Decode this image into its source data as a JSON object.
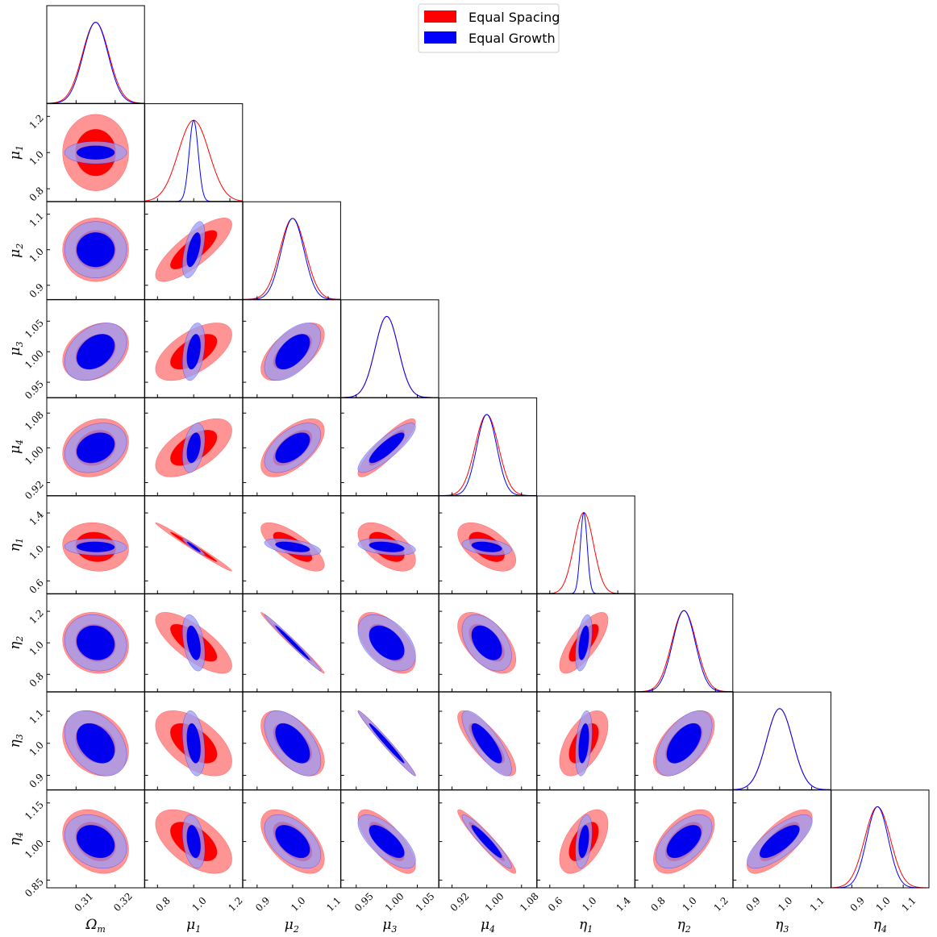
{
  "chart_data": {
    "type": "corner",
    "legend": {
      "placement": "top-center",
      "entries": [
        {
          "label": "Equal Spacing",
          "color": "#ff0000"
        },
        {
          "label": "Equal Growth",
          "color": "#0000ff"
        }
      ]
    },
    "parameters": [
      {
        "name": "Omega_m",
        "label": "Ωm",
        "symbol": "Ω",
        "subscript": "m",
        "mean": 0.315,
        "ticks": [
          "0.31",
          "0.32"
        ],
        "tick_values": [
          0.31,
          0.32
        ],
        "range": [
          0.3025,
          0.3275
        ],
        "sigma_spacing": 0.0034,
        "sigma_growth": 0.0032
      },
      {
        "name": "mu_1",
        "label": "μ1",
        "symbol": "μ",
        "subscript": "1",
        "mean": 1.0,
        "ticks": [
          "0.8",
          "1.0",
          "1.2"
        ],
        "tick_values": [
          0.8,
          1.0,
          1.2
        ],
        "range": [
          0.73,
          1.27
        ],
        "sigma_spacing": 0.085,
        "sigma_growth": 0.025
      },
      {
        "name": "mu_2",
        "label": "μ2",
        "symbol": "μ",
        "subscript": "2",
        "mean": 1.0,
        "ticks": [
          "0.9",
          "1.0",
          "1.1"
        ],
        "tick_values": [
          0.9,
          1.0,
          1.1
        ],
        "range": [
          0.86,
          1.135
        ],
        "sigma_spacing": 0.036,
        "sigma_growth": 0.032
      },
      {
        "name": "mu_3",
        "label": "μ3",
        "symbol": "μ",
        "subscript": "3",
        "mean": 1.0,
        "ticks": [
          "0.95",
          "1.00",
          "1.05"
        ],
        "tick_values": [
          0.95,
          1.0,
          1.05
        ],
        "range": [
          0.925,
          1.085
        ],
        "sigma_spacing": 0.019,
        "sigma_growth": 0.019
      },
      {
        "name": "mu_4",
        "label": "μ4",
        "symbol": "μ",
        "subscript": "4",
        "mean": 1.0,
        "ticks": [
          "0.92",
          "1.00",
          "1.08"
        ],
        "tick_values": [
          0.92,
          1.0,
          1.08
        ],
        "range": [
          0.89,
          1.115
        ],
        "sigma_spacing": 0.027,
        "sigma_growth": 0.023
      },
      {
        "name": "eta_1",
        "label": "η1",
        "symbol": "η",
        "subscript": "1",
        "mean": 1.0,
        "ticks": [
          "0.6",
          "1.0",
          "1.4"
        ],
        "tick_values": [
          0.6,
          1.0,
          1.4
        ],
        "range": [
          0.45,
          1.6
        ],
        "sigma_spacing": 0.115,
        "sigma_growth": 0.04
      },
      {
        "name": "eta_2",
        "label": "η2",
        "symbol": "η",
        "subscript": "2",
        "mean": 1.0,
        "ticks": [
          "0.8",
          "1.0",
          "1.2"
        ],
        "tick_values": [
          0.8,
          1.0,
          1.2
        ],
        "range": [
          0.69,
          1.31
        ],
        "sigma_spacing": 0.078,
        "sigma_growth": 0.072
      },
      {
        "name": "eta_3",
        "label": "η3",
        "symbol": "η",
        "subscript": "3",
        "mean": 1.0,
        "ticks": [
          "0.9",
          "1.0",
          "1.1"
        ],
        "tick_values": [
          0.9,
          1.0,
          1.1
        ],
        "range": [
          0.855,
          1.16
        ],
        "sigma_spacing": 0.041,
        "sigma_growth": 0.041
      },
      {
        "name": "eta_4",
        "label": "η4",
        "symbol": "η",
        "subscript": "4",
        "mean": 1.0,
        "ticks": [
          "0.9",
          "1.0",
          "1.1"
        ],
        "tick_values": [
          0.9,
          1.0,
          1.1
        ],
        "range": [
          0.82,
          1.2
        ],
        "sigma_spacing": 0.05,
        "sigma_growth": 0.042
      }
    ],
    "y_tick_overrides": {
      "eta_4": {
        "ticks": [
          "0.85",
          "1.00",
          "1.15"
        ],
        "tick_values": [
          0.85,
          1.0,
          1.15
        ]
      }
    },
    "correlations": {
      "spacing": [
        [
          1.0,
          0.0,
          0.0,
          0.3,
          0.2,
          -0.1,
          -0.1,
          -0.25,
          -0.25
        ],
        [
          0.0,
          1.0,
          0.8,
          0.6,
          0.6,
          -0.99,
          -0.75,
          -0.55,
          -0.55
        ],
        [
          0.0,
          0.8,
          1.0,
          0.6,
          0.6,
          -0.75,
          -0.99,
          -0.55,
          -0.55
        ],
        [
          0.3,
          0.6,
          0.6,
          1.0,
          0.88,
          -0.55,
          -0.55,
          -0.985,
          -0.75
        ],
        [
          0.2,
          0.6,
          0.6,
          0.88,
          1.0,
          -0.55,
          -0.55,
          -0.8,
          -0.95
        ],
        [
          -0.1,
          -0.99,
          -0.75,
          -0.55,
          -0.55,
          1.0,
          0.75,
          0.55,
          0.55
        ],
        [
          -0.1,
          -0.75,
          -0.99,
          -0.55,
          -0.55,
          0.75,
          1.0,
          0.55,
          0.55
        ],
        [
          -0.25,
          -0.55,
          -0.55,
          -0.985,
          -0.8,
          0.55,
          0.55,
          1.0,
          0.75
        ],
        [
          -0.25,
          -0.55,
          -0.55,
          -0.75,
          -0.95,
          0.55,
          0.55,
          0.75,
          1.0
        ]
      ],
      "growth": [
        [
          1.0,
          0.0,
          0.0,
          0.35,
          0.25,
          -0.05,
          -0.1,
          -0.35,
          -0.25
        ],
        [
          0.0,
          1.0,
          0.55,
          0.35,
          0.35,
          -0.95,
          -0.4,
          -0.3,
          -0.3
        ],
        [
          0.0,
          0.55,
          1.0,
          0.55,
          0.55,
          -0.5,
          -0.99,
          -0.55,
          -0.5
        ],
        [
          0.35,
          0.35,
          0.55,
          1.0,
          0.85,
          -0.35,
          -0.45,
          -0.985,
          -0.7
        ],
        [
          0.25,
          0.35,
          0.55,
          0.85,
          1.0,
          -0.35,
          -0.45,
          -0.8,
          -0.94
        ],
        [
          -0.05,
          -0.95,
          -0.5,
          -0.35,
          -0.35,
          1.0,
          0.45,
          0.35,
          0.35
        ],
        [
          -0.1,
          -0.4,
          -0.99,
          -0.45,
          -0.45,
          0.45,
          1.0,
          0.55,
          0.55
        ],
        [
          -0.35,
          -0.3,
          -0.55,
          -0.985,
          -0.8,
          0.35,
          0.55,
          1.0,
          0.75
        ],
        [
          -0.25,
          -0.3,
          -0.5,
          -0.7,
          -0.94,
          0.35,
          0.55,
          0.75,
          1.0
        ]
      ]
    },
    "contour_levels": [
      "68%",
      "95%"
    ],
    "styles": {
      "spacing": {
        "line": "#ff0000",
        "inner_fill": "#ff0000",
        "outer_fill": "#ff7070"
      },
      "growth": {
        "line": "#0000ff",
        "inner_fill": "#0000ee",
        "outer_fill": "#9b9bf5"
      }
    }
  }
}
